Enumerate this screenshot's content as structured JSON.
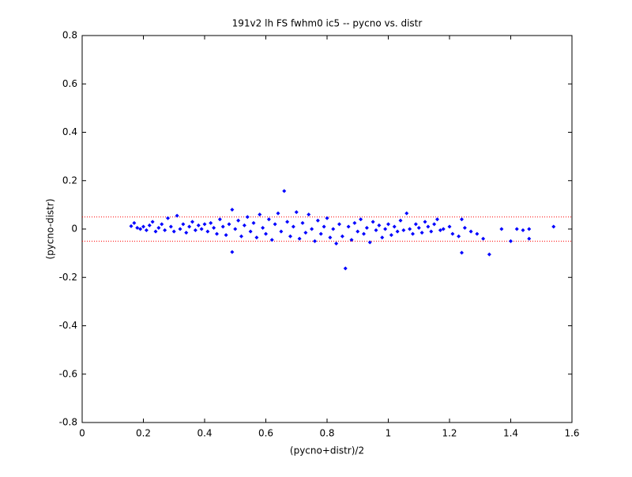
{
  "chart_data": {
    "type": "scatter",
    "title": "191v2 lh FS fwhm0 ic5 -- pycno vs. distr",
    "x_label": "(pycno+distr)/2",
    "y_label": "(pycno-distr)",
    "xlim": [
      0,
      1.6
    ],
    "ylim": [
      -0.8,
      0.8
    ],
    "xticks": [
      0,
      0.2,
      0.4,
      0.6,
      0.8,
      1,
      1.2,
      1.4,
      1.6
    ],
    "yticks": [
      -0.8,
      -0.6,
      -0.4,
      -0.2,
      0,
      0.2,
      0.4,
      0.6,
      0.8
    ],
    "hlines": [
      0.05,
      -0.05
    ],
    "hline_color": "#ff0000",
    "series": [
      {
        "color": "#0000ff",
        "x": [
          0.16,
          0.17,
          0.18,
          0.19,
          0.2,
          0.21,
          0.22,
          0.23,
          0.24,
          0.25,
          0.26,
          0.27,
          0.28,
          0.29,
          0.3,
          0.31,
          0.32,
          0.33,
          0.34,
          0.35,
          0.36,
          0.37,
          0.38,
          0.39,
          0.4,
          0.41,
          0.42,
          0.43,
          0.44,
          0.45,
          0.46,
          0.47,
          0.48,
          0.49,
          0.49,
          0.5,
          0.51,
          0.52,
          0.53,
          0.54,
          0.55,
          0.56,
          0.57,
          0.58,
          0.59,
          0.6,
          0.61,
          0.62,
          0.63,
          0.64,
          0.65,
          0.66,
          0.67,
          0.68,
          0.69,
          0.7,
          0.71,
          0.72,
          0.73,
          0.74,
          0.75,
          0.76,
          0.77,
          0.78,
          0.79,
          0.8,
          0.81,
          0.82,
          0.83,
          0.84,
          0.85,
          0.86,
          0.87,
          0.88,
          0.89,
          0.9,
          0.91,
          0.92,
          0.93,
          0.94,
          0.95,
          0.96,
          0.97,
          0.98,
          0.99,
          1.0,
          1.01,
          1.02,
          1.03,
          1.04,
          1.05,
          1.06,
          1.07,
          1.08,
          1.09,
          1.1,
          1.11,
          1.12,
          1.13,
          1.14,
          1.15,
          1.16,
          1.17,
          1.18,
          1.2,
          1.21,
          1.23,
          1.24,
          1.24,
          1.25,
          1.27,
          1.29,
          1.31,
          1.33,
          1.37,
          1.4,
          1.42,
          1.44,
          1.46,
          1.46,
          1.54
        ],
        "values": [
          0.012,
          0.025,
          0.005,
          0.0,
          0.01,
          -0.005,
          0.015,
          0.03,
          -0.01,
          0.005,
          0.02,
          -0.005,
          0.045,
          0.01,
          -0.01,
          0.055,
          0.0,
          0.02,
          -0.015,
          0.01,
          0.03,
          -0.005,
          0.015,
          0.0,
          0.02,
          -0.01,
          0.025,
          0.005,
          -0.02,
          0.04,
          0.01,
          -0.025,
          0.02,
          -0.095,
          0.08,
          0.0,
          0.035,
          -0.03,
          0.015,
          0.05,
          -0.01,
          0.025,
          -0.035,
          0.06,
          0.005,
          -0.02,
          0.04,
          -0.045,
          0.02,
          0.065,
          -0.01,
          0.157,
          0.03,
          -0.03,
          0.01,
          0.07,
          -0.04,
          0.025,
          -0.015,
          0.06,
          0.0,
          -0.05,
          0.035,
          -0.02,
          0.01,
          0.045,
          -0.035,
          0.0,
          -0.06,
          0.02,
          -0.03,
          -0.163,
          0.01,
          -0.045,
          0.025,
          -0.01,
          0.04,
          -0.02,
          0.005,
          -0.055,
          0.03,
          -0.005,
          0.015,
          -0.035,
          0.0,
          0.02,
          -0.025,
          0.01,
          -0.01,
          0.035,
          -0.005,
          0.065,
          0.0,
          -0.02,
          0.02,
          0.005,
          -0.015,
          0.03,
          0.01,
          -0.01,
          0.02,
          0.04,
          -0.005,
          0.0,
          0.01,
          -0.02,
          -0.03,
          0.04,
          -0.098,
          0.005,
          -0.01,
          -0.02,
          -0.04,
          -0.105,
          0.0,
          -0.05,
          0.0,
          -0.005,
          -0.04,
          0.0,
          0.01
        ]
      }
    ]
  }
}
